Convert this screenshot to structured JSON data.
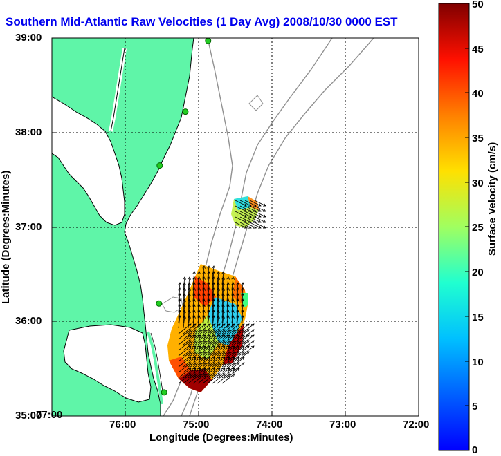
{
  "title": "Southern Mid-Atlantic Raw Velocities (1 Day Avg) 2008/10/30 0000 EST",
  "x_axis": {
    "label": "Longitude (Degrees:Minutes)",
    "ticks": [
      "77:00",
      "76:00",
      "75:00",
      "74:00",
      "73:00",
      "72:00"
    ]
  },
  "y_axis": {
    "label": "Latitude (Degrees:Minutes)",
    "ticks": [
      "39:00",
      "38:00",
      "37:00",
      "36:00",
      "35:00"
    ]
  },
  "colorbar": {
    "label": "Surface Velocity (cm/s)",
    "ticks": [
      "50",
      "45",
      "40",
      "35",
      "30",
      "25",
      "20",
      "15",
      "10",
      "5",
      "0"
    ],
    "range": [
      0,
      50
    ],
    "colormap": "jet"
  },
  "colors": {
    "land": "#5ff5a8",
    "coast_outline": "#000000",
    "bathymetry": "#909090",
    "grid": "#000000",
    "stations": "#22cc22",
    "title": "#0000ee"
  },
  "map": {
    "lon_range": [
      -77,
      -72
    ],
    "lat_range": [
      35,
      39
    ],
    "stations": [
      {
        "lon": -74.87,
        "lat": 38.97
      },
      {
        "lon": -75.18,
        "lat": 38.22
      },
      {
        "lon": -75.53,
        "lat": 37.65
      },
      {
        "lon": -75.54,
        "lat": 36.19
      },
      {
        "lon": -75.47,
        "lat": 35.25
      }
    ]
  }
}
